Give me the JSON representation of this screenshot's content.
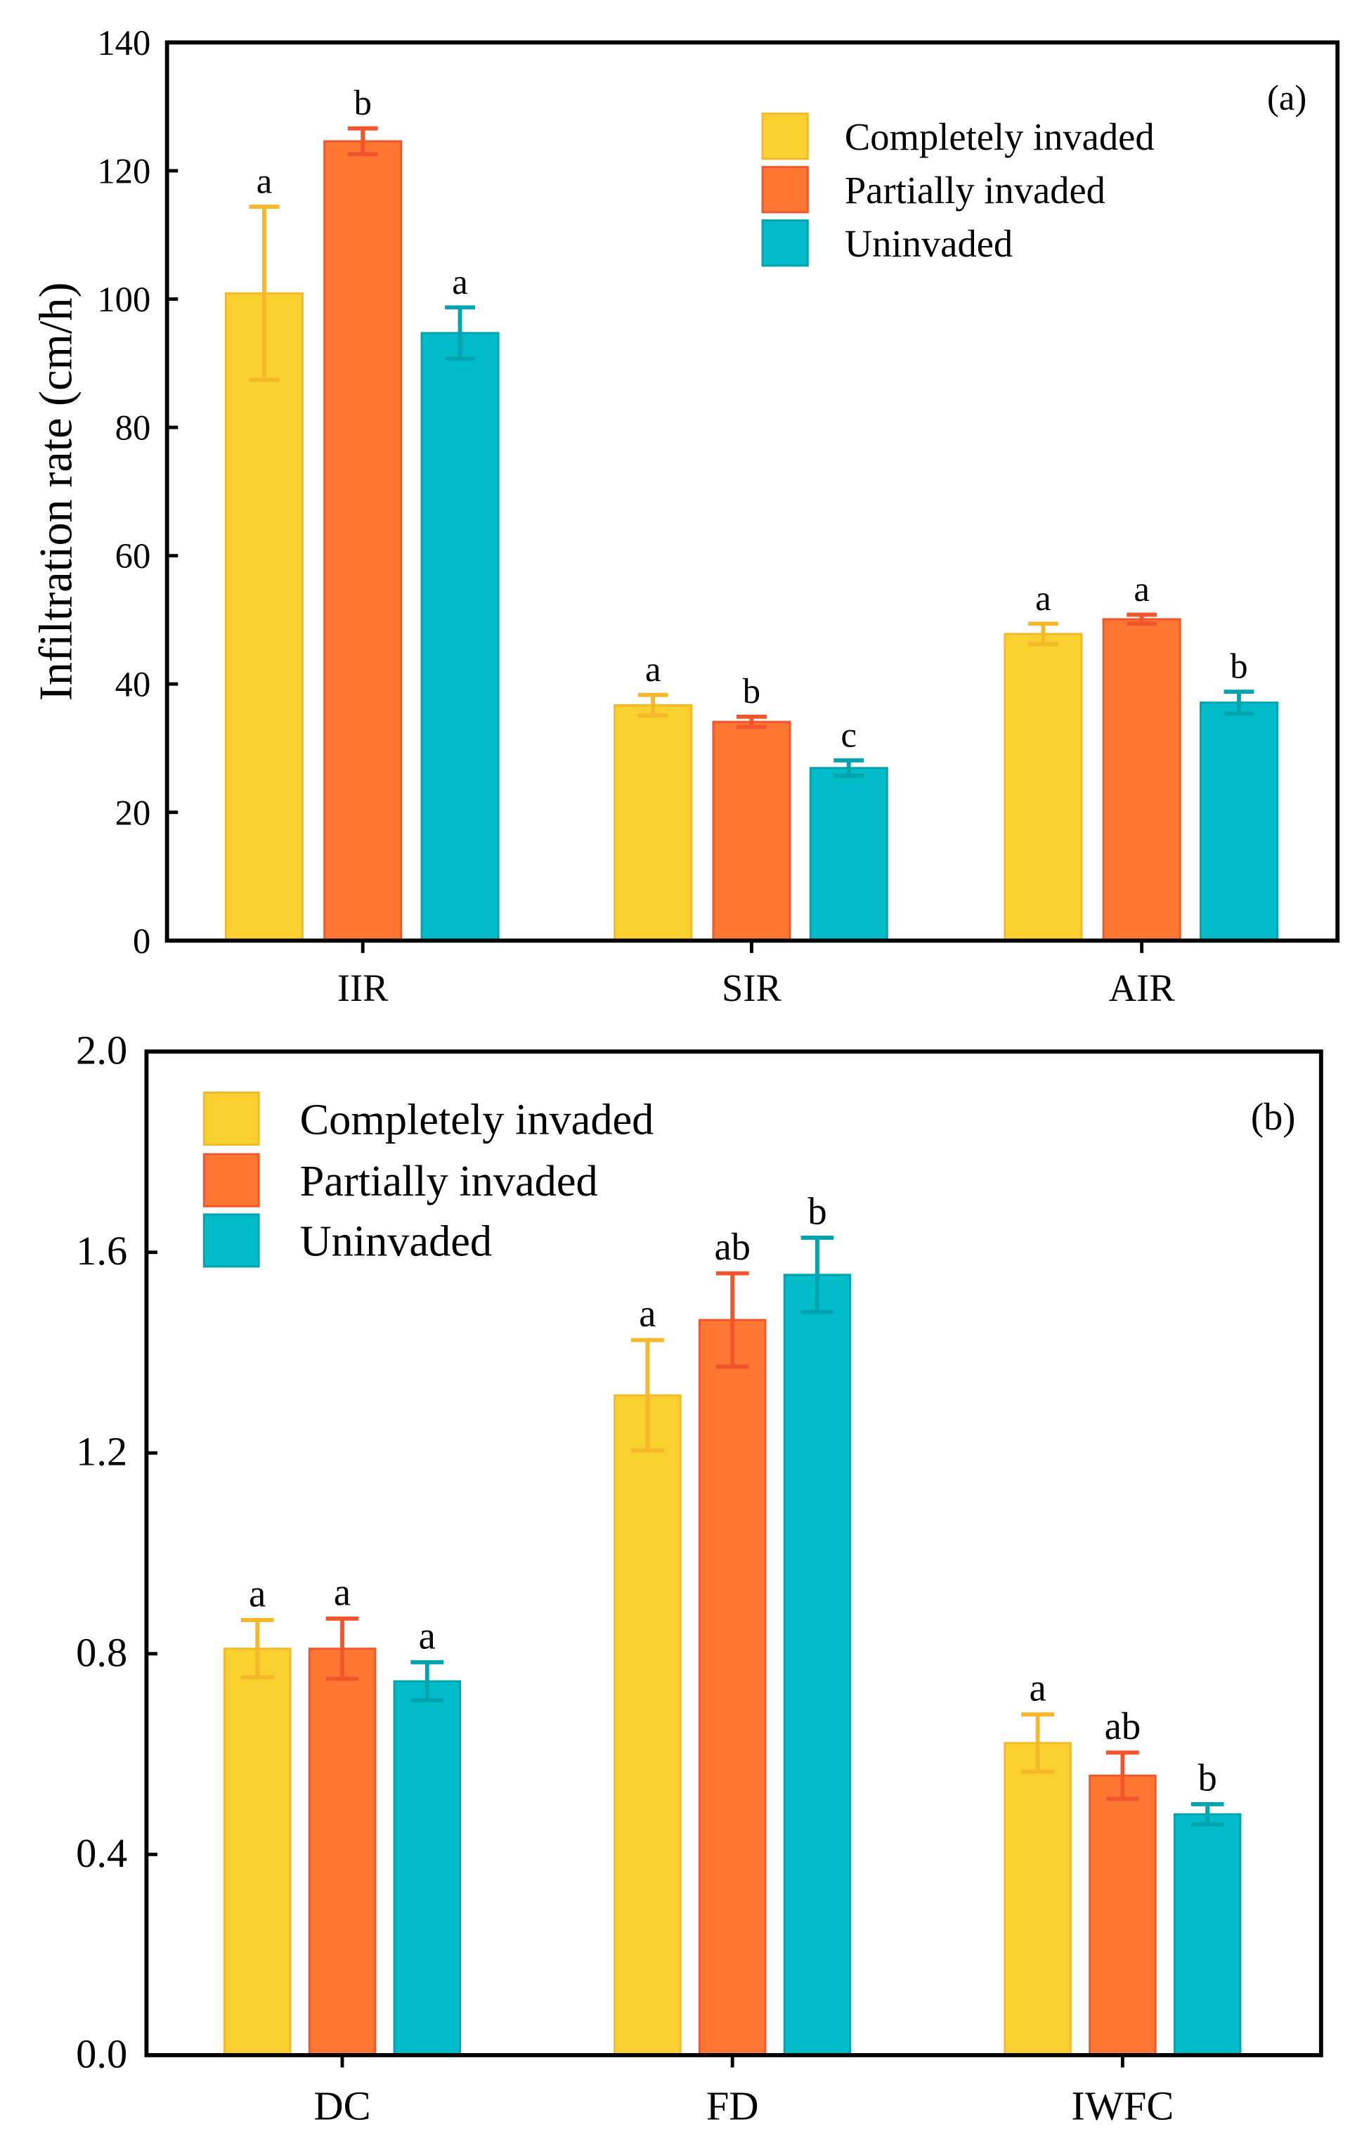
{
  "colors": {
    "completely": "#FAD02E",
    "partially": "#FF7733",
    "uninvaded": "#00BCC8",
    "completely_edge": "#F4B82A",
    "partially_edge": "#F2552C",
    "uninvaded_edge": "#00A3AE"
  },
  "chart_data": [
    {
      "type": "bar",
      "panel_label": "(a)",
      "title": "",
      "xlabel": "",
      "ylabel": "Infiltration rate (cm/h)",
      "ylim": [
        0,
        140
      ],
      "yticks": [
        "0",
        "20",
        "40",
        "60",
        "80",
        "100",
        "120",
        "140"
      ],
      "categories": [
        "IIR",
        "SIR",
        "AIR"
      ],
      "legend_position": "top-right",
      "series": [
        {
          "name": "Completely invaded",
          "key": "completely",
          "values": [
            100.9,
            36.7,
            47.8
          ],
          "errors": [
            13.5,
            1.6,
            1.6
          ],
          "letters": [
            "a",
            "a",
            "a"
          ]
        },
        {
          "name": "Partially invaded",
          "key": "partially",
          "values": [
            124.6,
            34.1,
            50.1
          ],
          "errors": [
            2.0,
            0.8,
            0.7
          ],
          "letters": [
            "b",
            "b",
            "a"
          ]
        },
        {
          "name": "Uninvaded",
          "key": "uninvaded",
          "values": [
            94.7,
            26.9,
            37.1
          ],
          "errors": [
            4.0,
            1.2,
            1.7
          ],
          "letters": [
            "a",
            "c",
            "b"
          ]
        }
      ]
    },
    {
      "type": "bar",
      "panel_label": "(b)",
      "title": "",
      "xlabel": "",
      "ylabel": "",
      "ylim": [
        0,
        2.0
      ],
      "yticks": [
        "0.0",
        "0.4",
        "0.8",
        "1.2",
        "1.6",
        "2.0"
      ],
      "categories": [
        "DC",
        "FD",
        "IWFC"
      ],
      "legend_position": "top-left",
      "series": [
        {
          "name": "Completely invaded",
          "key": "completely",
          "values": [
            0.81,
            1.315,
            0.622
          ],
          "errors": [
            0.057,
            0.11,
            0.057
          ],
          "letters": [
            "a",
            "a",
            "a"
          ]
        },
        {
          "name": "Partially invaded",
          "key": "partially",
          "values": [
            0.81,
            1.465,
            0.557
          ],
          "errors": [
            0.06,
            0.093,
            0.046
          ],
          "letters": [
            "a",
            "ab",
            "ab"
          ]
        },
        {
          "name": "Uninvaded",
          "key": "uninvaded",
          "values": [
            0.745,
            1.555,
            0.48
          ],
          "errors": [
            0.038,
            0.074,
            0.02
          ],
          "letters": [
            "a",
            "b",
            "b"
          ]
        }
      ]
    }
  ]
}
